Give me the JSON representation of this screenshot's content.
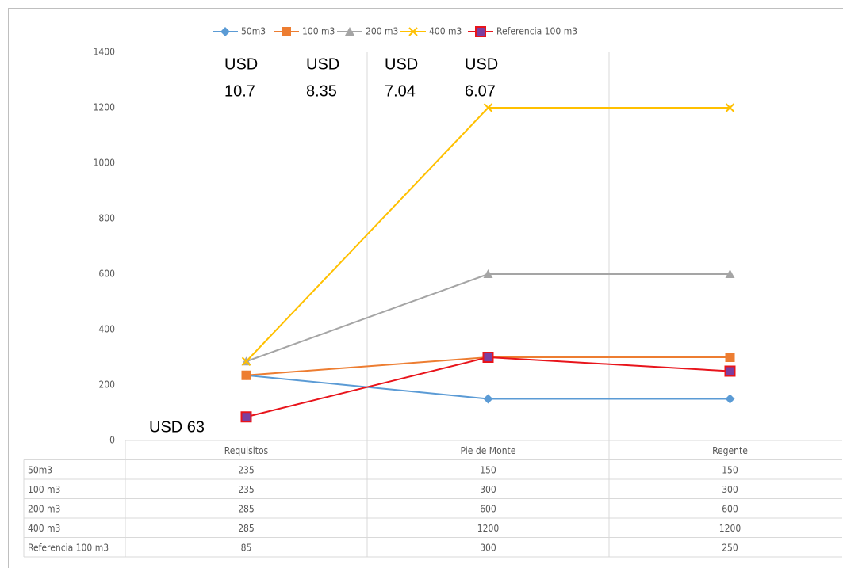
{
  "chart_data": {
    "type": "line",
    "categories": [
      "Requisitos",
      "Pie de Monte",
      "Regente"
    ],
    "series": [
      {
        "name": "50m3",
        "color": "#5b9bd5",
        "marker": "diamond",
        "values": [
          235,
          150,
          150
        ]
      },
      {
        "name": "100 m3",
        "color": "#ed7d31",
        "marker": "square",
        "values": [
          235,
          300,
          300
        ]
      },
      {
        "name": "200 m3",
        "color": "#a5a5a5",
        "marker": "triangle",
        "values": [
          285,
          600,
          600
        ]
      },
      {
        "name": "400 m3",
        "color": "#ffc000",
        "marker": "x",
        "values": [
          285,
          1200,
          1200
        ]
      },
      {
        "name": "Referencia 100 m3",
        "color": "#e8141b",
        "marker": "square",
        "marker_color": "#7b3fa0",
        "values": [
          85,
          300,
          250
        ]
      }
    ],
    "ylim": [
      0,
      1400
    ],
    "yticks": [
      0,
      200,
      400,
      600,
      800,
      1000,
      1200,
      1400
    ],
    "grid": true,
    "legend": "top",
    "data_table": true,
    "annotations": [
      {
        "lines": [
          "USD",
          "10.7"
        ]
      },
      {
        "lines": [
          "USD",
          "8.35"
        ]
      },
      {
        "lines": [
          "USD",
          "7.04"
        ]
      },
      {
        "lines": [
          "USD",
          "6.07"
        ]
      },
      {
        "lines": [
          "USD 63"
        ]
      }
    ]
  }
}
